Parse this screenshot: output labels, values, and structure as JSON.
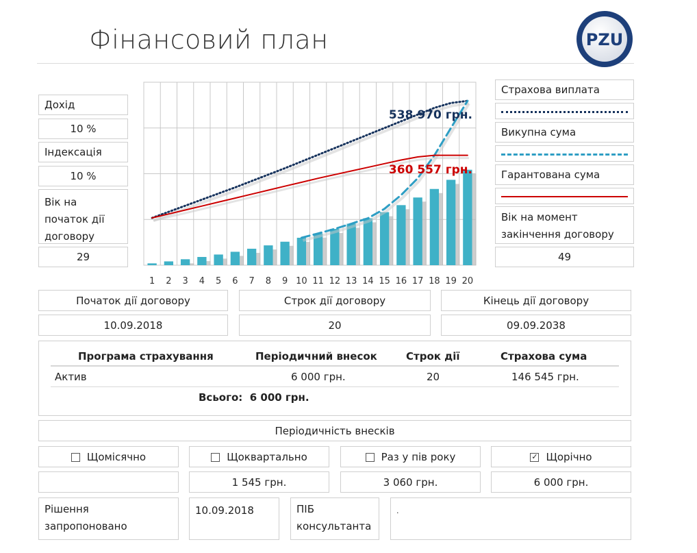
{
  "page": {
    "title": "Фінансовий план"
  },
  "logo": {
    "text": "PZU",
    "icon": "pzu-logo"
  },
  "left_panel": {
    "income_label": "Дохід",
    "income_value": "10 %",
    "indexation_label": "Індексація",
    "indexation_value": "10 %",
    "start_age_label": "Вік на початок дії договору",
    "start_age_value": "29"
  },
  "right_panel": {
    "insurance_payment_label": "Страхова виплата",
    "surrender_label": "Викупна сума",
    "guaranteed_label": "Гарантована сума",
    "end_age_label": "Вік на момент закінчення договору",
    "end_age_value": "49"
  },
  "chart_data": {
    "type": "bar",
    "categories": [
      "1",
      "2",
      "3",
      "4",
      "5",
      "6",
      "7",
      "8",
      "9",
      "10",
      "11",
      "12",
      "13",
      "14",
      "15",
      "16",
      "17",
      "18",
      "19",
      "20"
    ],
    "ylim": [
      0,
      600000
    ],
    "grid": true,
    "colors": {
      "bar": "#3fb1c7",
      "shadow": "#b8b8b8",
      "insurance": "#16325c",
      "surrender": "#2e9ec4",
      "guaranteed": "#cc0000"
    },
    "annotations": [
      {
        "text": "538 970 грн.",
        "color": "#16325c"
      },
      {
        "text": "360 557 грн.",
        "color": "#cc0000"
      }
    ],
    "series": [
      {
        "type": "bar",
        "values": [
          6000,
          12500,
          19500,
          27000,
          35000,
          44000,
          54000,
          65000,
          77000,
          90000,
          104000,
          119000,
          136000,
          154000,
          174000,
          197000,
          222000,
          250000,
          280000,
          313000
        ]
      },
      {
        "type": "line-dotted",
        "values": [
          155000,
          175000,
          195000,
          215000,
          235000,
          255000,
          276000,
          297000,
          318000,
          340000,
          362000,
          384000,
          406000,
          428000,
          450000,
          472000,
          494000,
          516000,
          532000,
          538970
        ]
      },
      {
        "type": "line-dashed",
        "values": [
          null,
          null,
          null,
          null,
          null,
          null,
          null,
          null,
          null,
          90000,
          104000,
          119000,
          136000,
          154000,
          185000,
          230000,
          285000,
          360000,
          450000,
          538970
        ]
      },
      {
        "type": "line",
        "values": [
          155000,
          168000,
          181000,
          194000,
          207000,
          220000,
          233000,
          246000,
          259000,
          272000,
          285000,
          297000,
          309000,
          321000,
          333000,
          345000,
          355000,
          360557,
          360557,
          360557
        ]
      }
    ]
  },
  "contract": {
    "start_label": "Початок дії договору",
    "start_value": "10.09.2018",
    "term_label": "Строк дії договору",
    "term_value": "20",
    "end_label": "Кінець дії договору",
    "end_value": "09.09.2038"
  },
  "program_table": {
    "headers": [
      "Програма страхування",
      "Періодичний внесок",
      "Строк дії",
      "Страхова сума"
    ],
    "rows": [
      [
        "Актив",
        "6 000 грн.",
        "20",
        "146 545 грн."
      ]
    ],
    "total_label": "Всього:",
    "total_value": "6 000 грн."
  },
  "periodicity": {
    "title": "Періодичність внесків",
    "options": [
      {
        "label": "Щомісячно",
        "checked": false,
        "amount": ""
      },
      {
        "label": "Щоквартально",
        "checked": false,
        "amount": "1 545 грн."
      },
      {
        "label": "Раз у пів року",
        "checked": false,
        "amount": "3 060 грн."
      },
      {
        "label": "Щорічно",
        "checked": true,
        "amount": "6 000 грн."
      }
    ]
  },
  "footer": {
    "decision_label": "Рішення запропоновано",
    "decision_date": "10.09.2018",
    "consultant_label": "ПІБ консультанта",
    "consultant_name": "."
  }
}
